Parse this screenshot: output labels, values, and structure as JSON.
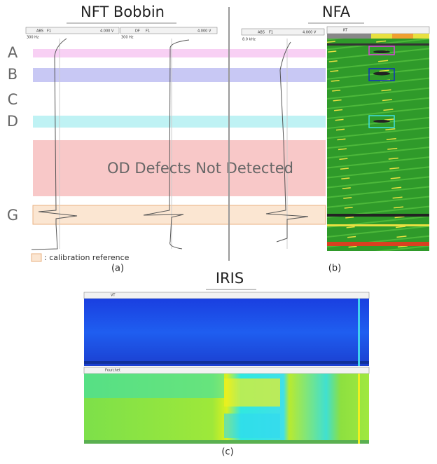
{
  "panels": {
    "a": {
      "title": "NFT Bobbin",
      "caption": "(a)",
      "rows": [
        "A",
        "B",
        "C",
        "D",
        "G"
      ],
      "annotation": "OD Defects Not Detected",
      "legend": ": calibration reference",
      "toolbar": {
        "frequency": "300 Hz",
        "mode_1": "ABS",
        "mode_2": "DF",
        "filter": "F1",
        "scale": "4.000 V"
      }
    },
    "b": {
      "title": "NFA",
      "caption": "(b)",
      "toolbar": {
        "frequency": "8.0 kHz",
        "mode": "ABS",
        "filter": "F1",
        "scale": "4.000 V",
        "view": "RT"
      }
    },
    "c": {
      "title": "IRIS",
      "caption": "(c)",
      "toolbar": {
        "top_view": "VT",
        "bottom_view": "Fourchet"
      }
    }
  }
}
